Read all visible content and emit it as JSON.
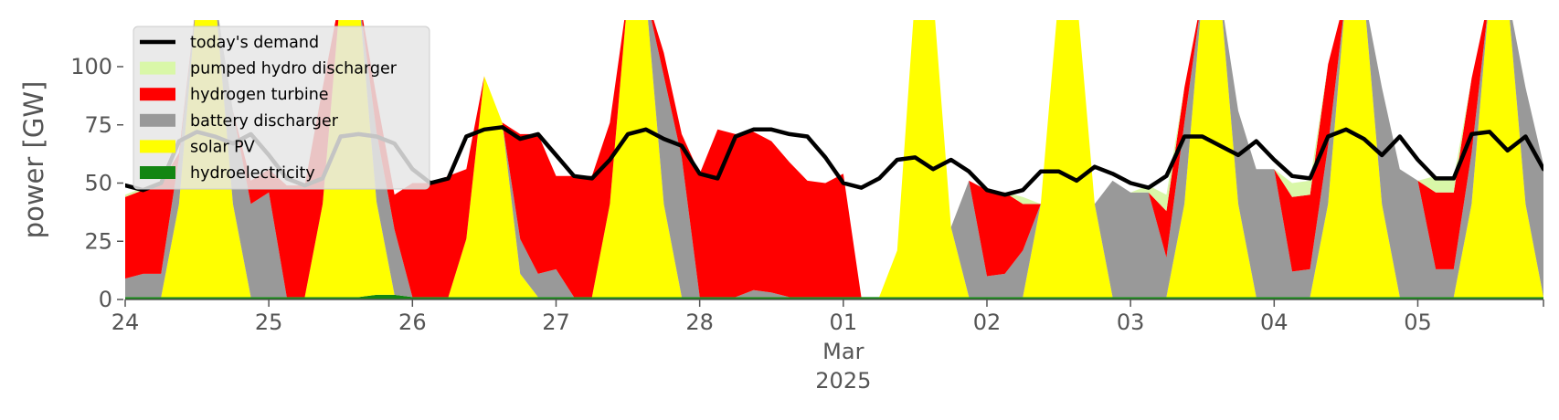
{
  "chart_data": {
    "type": "area",
    "ylabel": "power [GW]",
    "ylim": [
      0,
      120
    ],
    "yticks": [
      "0",
      "25",
      "50",
      "75",
      "100"
    ],
    "xticks": [
      "24",
      "25",
      "26",
      "27",
      "28",
      "01",
      "02",
      "03",
      "04",
      "05"
    ],
    "x_secondary_label": "Mar",
    "x_year_label": "2025",
    "legend_position": "upper-left",
    "x_start": "2025-02-24T00:00",
    "x_end": "2025-03-05T23:00",
    "x_step_hours": 3,
    "colors": {
      "demand": "#000000",
      "pumped_hydro": "#d9f7a8",
      "hydrogen": "#ff0000",
      "battery": "#999999",
      "solar": "#ffff00",
      "hydro": "#138613"
    },
    "series": [
      {
        "key": "hydro",
        "name": "hydroelectricity",
        "values": [
          1,
          1,
          1,
          1,
          1,
          1,
          1,
          1,
          1,
          1,
          1,
          1,
          1,
          1,
          2,
          2,
          1,
          1,
          1,
          1,
          1,
          1,
          1,
          1,
          1,
          1,
          1,
          1,
          1,
          1,
          1,
          1,
          1,
          1,
          1,
          1,
          1,
          1,
          1,
          1,
          1,
          1,
          1,
          1,
          1,
          1,
          1,
          1,
          1,
          1,
          1,
          1,
          1,
          1,
          1,
          1,
          1,
          1,
          1,
          1,
          1,
          1,
          1,
          1,
          1,
          1,
          1,
          1,
          1,
          1,
          1,
          1,
          1,
          1,
          1,
          1,
          1,
          1,
          1,
          1
        ]
      },
      {
        "key": "solar",
        "name": "solar PV",
        "values": [
          0,
          0,
          0,
          40,
          130,
          130,
          40,
          0,
          0,
          0,
          0,
          40,
          130,
          130,
          40,
          0,
          0,
          0,
          0,
          25,
          95,
          75,
          10,
          0,
          0,
          0,
          0,
          40,
          130,
          130,
          40,
          0,
          0,
          0,
          0,
          0,
          0,
          0,
          0,
          0,
          0,
          0,
          0,
          20,
          130,
          130,
          30,
          0,
          0,
          0,
          0,
          40,
          130,
          130,
          40,
          0,
          0,
          0,
          0,
          40,
          130,
          130,
          40,
          0,
          0,
          0,
          0,
          40,
          130,
          130,
          40,
          0,
          0,
          0,
          0,
          40,
          130,
          130,
          40,
          0
        ]
      },
      {
        "key": "battery",
        "name": "battery discharger",
        "values": [
          8,
          10,
          10,
          20,
          0,
          0,
          40,
          40,
          45,
          0,
          0,
          0,
          0,
          0,
          30,
          28,
          0,
          0,
          0,
          0,
          0,
          0,
          15,
          10,
          12,
          0,
          0,
          0,
          0,
          0,
          55,
          60,
          0,
          0,
          0,
          3,
          2,
          0,
          0,
          0,
          0,
          0,
          0,
          0,
          0,
          0,
          0,
          50,
          9,
          10,
          20,
          0,
          0,
          0,
          0,
          50,
          45,
          45,
          17,
          35,
          0,
          0,
          40,
          55,
          55,
          11,
          12,
          25,
          0,
          0,
          50,
          55,
          50,
          12,
          12,
          22,
          0,
          0,
          50,
          57
        ]
      },
      {
        "key": "hydrogen",
        "name": "hydrogen turbine",
        "values": [
          35,
          36,
          39,
          2,
          0,
          0,
          0,
          10,
          10,
          48,
          48,
          50,
          0,
          0,
          15,
          15,
          49,
          49,
          52,
          30,
          0,
          0,
          45,
          60,
          40,
          52,
          52,
          35,
          0,
          0,
          10,
          10,
          53,
          72,
          70,
          68,
          65,
          58,
          50,
          49,
          53,
          0,
          0,
          0,
          0,
          0,
          0,
          0,
          37,
          35,
          20,
          0,
          0,
          0,
          0,
          0,
          0,
          0,
          20,
          15,
          0,
          0,
          0,
          0,
          0,
          32,
          32,
          35,
          0,
          0,
          0,
          0,
          0,
          33,
          33,
          32,
          0,
          0,
          0,
          0
        ]
      },
      {
        "key": "pumped_hydro",
        "name": "pumped hydro discharger",
        "values": [
          1,
          1,
          1,
          0,
          0,
          0,
          0,
          0,
          0,
          0,
          0,
          0,
          0,
          0,
          0,
          0,
          0,
          0,
          0,
          0,
          0,
          0,
          0,
          0,
          0,
          0,
          0,
          0,
          0,
          0,
          0,
          0,
          0,
          0,
          0,
          0,
          0,
          0,
          0,
          0,
          0,
          0,
          0,
          0,
          0,
          0,
          0,
          0,
          0,
          0,
          3,
          0,
          0,
          0,
          0,
          0,
          0,
          3,
          7,
          0,
          0,
          0,
          0,
          0,
          0,
          6,
          6,
          0,
          0,
          0,
          0,
          0,
          0,
          7,
          6,
          0,
          0,
          0,
          0,
          0
        ]
      },
      {
        "key": "demand",
        "name": "today's demand",
        "values": [
          49,
          47,
          50,
          68,
          72,
          70,
          67,
          71,
          62,
          52,
          49,
          52,
          70,
          71,
          70,
          67,
          56,
          50,
          52,
          70,
          73,
          74,
          69,
          71,
          62,
          53,
          52,
          60,
          71,
          73,
          69,
          66,
          54,
          52,
          70,
          73,
          73,
          71,
          70,
          61,
          50,
          48,
          52,
          60,
          61,
          56,
          60,
          55,
          47,
          45,
          47,
          55,
          55,
          51,
          57,
          54,
          50,
          48,
          53,
          70,
          70,
          66,
          62,
          68,
          60,
          53,
          52,
          70,
          73,
          69,
          62,
          70,
          60,
          52,
          52,
          71,
          72,
          64,
          70,
          56
        ]
      }
    ],
    "legend": [
      {
        "key": "demand",
        "label": "today's demand",
        "style": "line"
      },
      {
        "key": "pumped_hydro",
        "label": "pumped hydro discharger",
        "style": "patch"
      },
      {
        "key": "hydrogen",
        "label": "hydrogen turbine",
        "style": "patch"
      },
      {
        "key": "battery",
        "label": "battery discharger",
        "style": "patch"
      },
      {
        "key": "solar",
        "label": "solar PV",
        "style": "patch"
      },
      {
        "key": "hydro",
        "label": "hydroelectricity",
        "style": "patch"
      }
    ]
  }
}
